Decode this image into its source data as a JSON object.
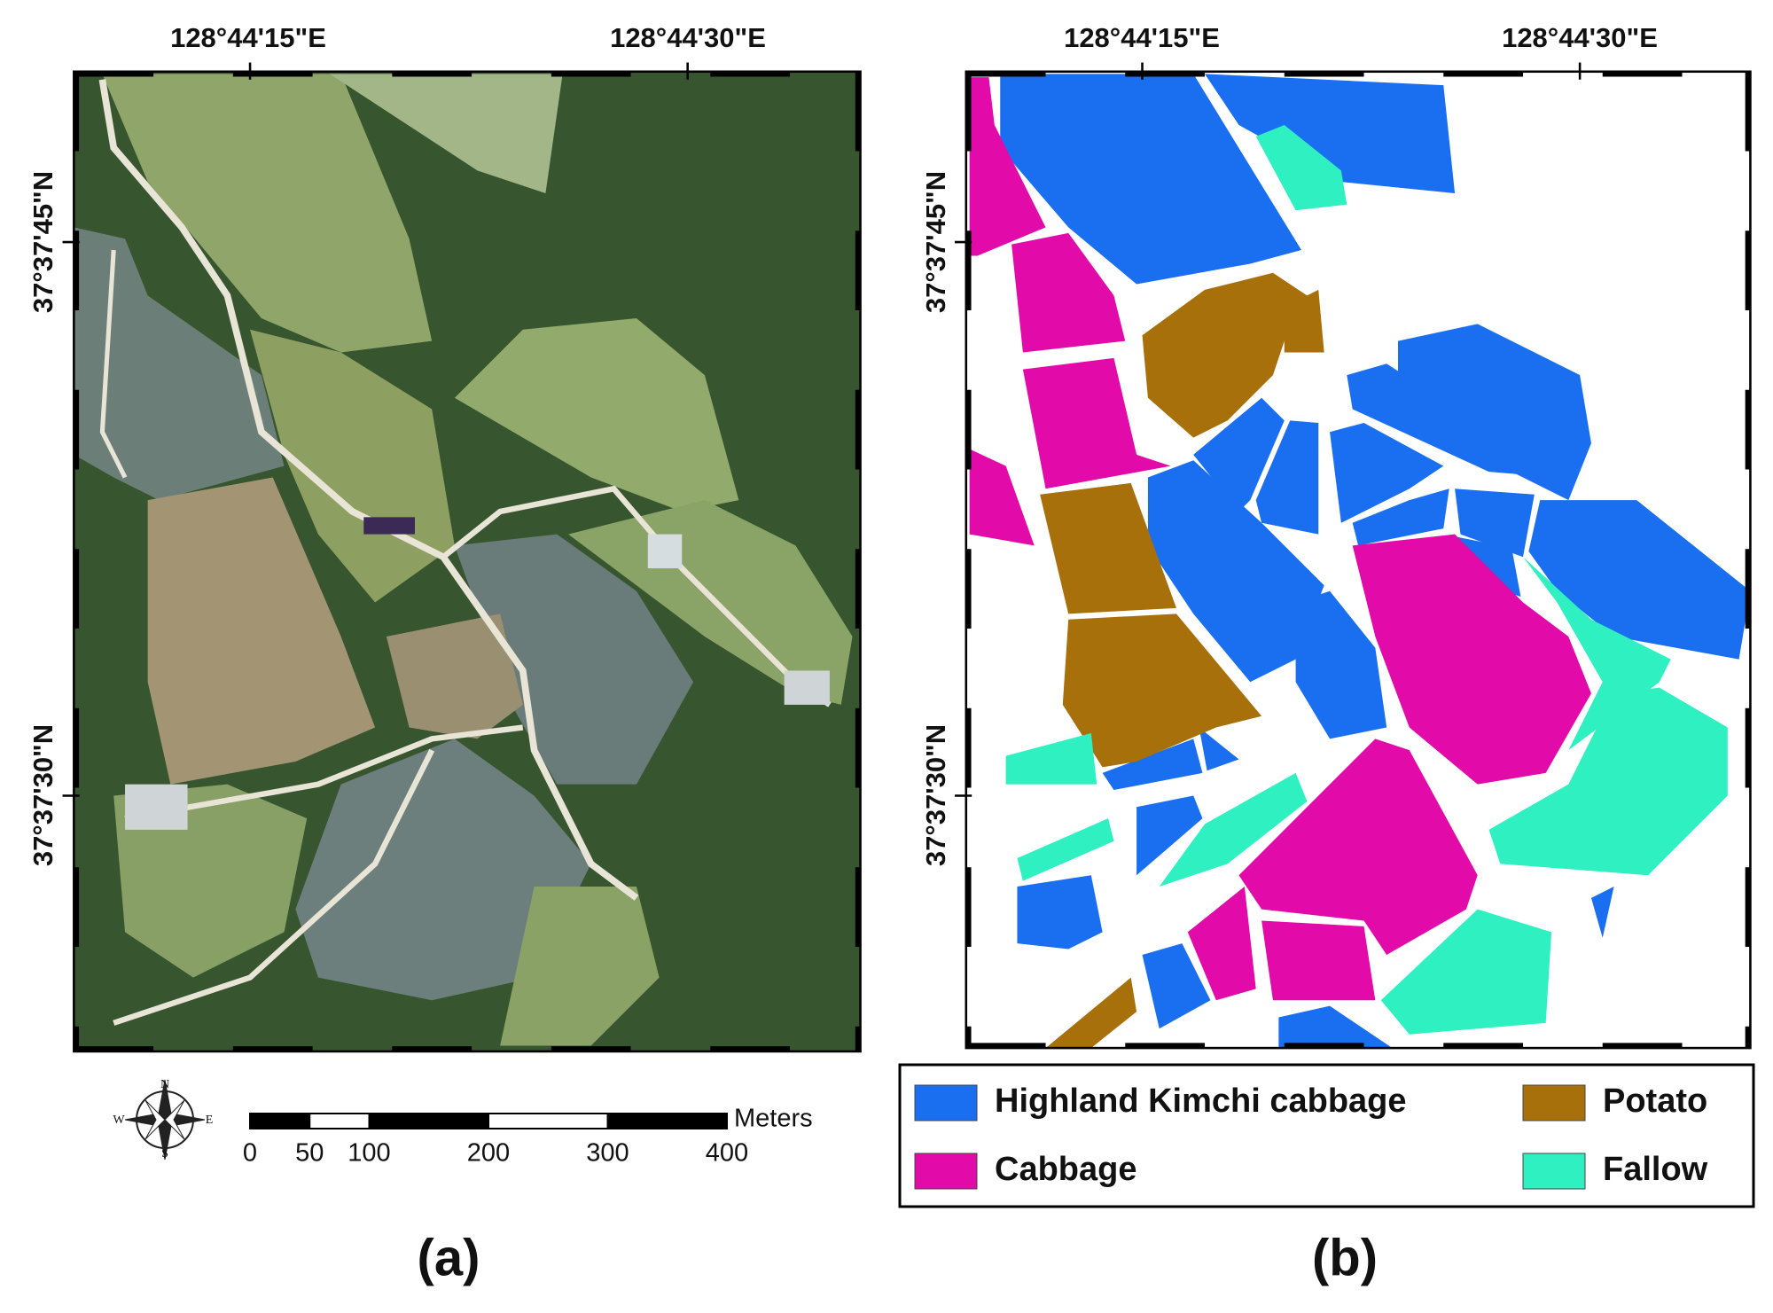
{
  "panels": [
    {
      "label": "(a)",
      "lon_labels": [
        "128°44'15\"E",
        "128°44'30\"E"
      ],
      "lat_labels": [
        "37°37'45\"N",
        "37°37'30\"N"
      ]
    },
    {
      "label": "(b)",
      "lon_labels": [
        "128°44'15\"E",
        "128°44'30\"E"
      ],
      "lat_labels": [
        "37°37'45\"N",
        "37°37'30\"N"
      ]
    }
  ],
  "compass": {
    "n": "N",
    "s": "S",
    "e": "E",
    "w": "W"
  },
  "scale_bar": {
    "unit": "Meters",
    "ticks": [
      0,
      50,
      100,
      200,
      300,
      400
    ]
  },
  "legend": [
    {
      "name": "Highland Kimchi cabbage",
      "color": "#1a6ef0"
    },
    {
      "name": "Potato",
      "color": "#a8700a"
    },
    {
      "name": "Cabbage",
      "color": "#e20aa8"
    },
    {
      "name": "Fallow",
      "color": "#2ef0c0"
    }
  ]
}
